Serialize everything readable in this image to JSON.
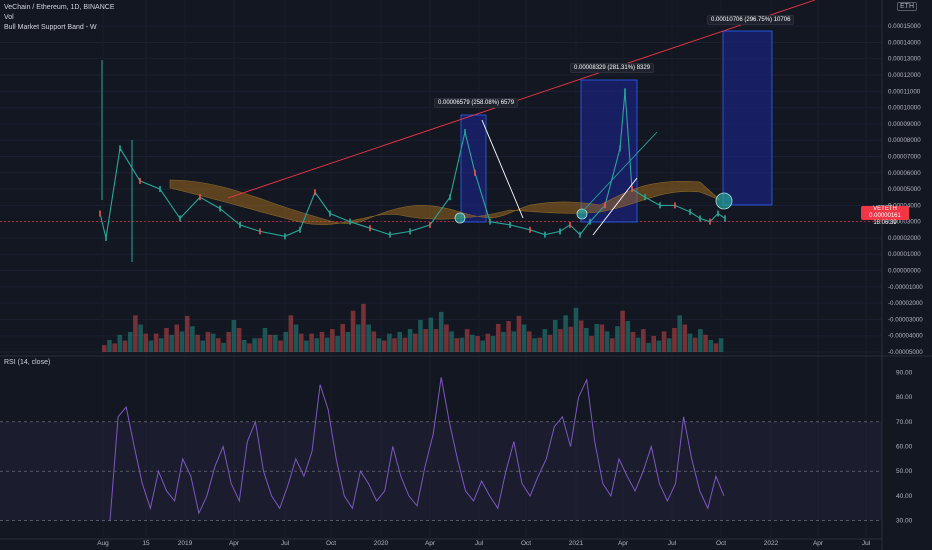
{
  "header": {
    "symbol_line": "VeChain / Ethereum, 1D, BINANCE",
    "vol_label": "Vol",
    "indicator_label": "Bull Market Support Band - W"
  },
  "rsi_label": "RSI (14, close)",
  "currency_badge": "ETH",
  "price_tag": {
    "symbol": "VETETH",
    "value": "0.00000161",
    "countdown": "18:06:39"
  },
  "annotations": [
    {
      "text": "0.00006579 (258.08%) 6579"
    },
    {
      "text": "0.00008329 (281.31%) 8329"
    },
    {
      "text": "0.00010706 (296.75%) 10706"
    }
  ],
  "colors": {
    "background": "#131722",
    "candle_up": "#26a69a",
    "candle_down": "#ef5350",
    "rsi_line": "#7e57c2",
    "trendline": "#f23645",
    "projection_fill": "#1a237e",
    "band_fill": "#b7781f"
  },
  "chart_data": [
    {
      "type": "line",
      "title": "VeChain / Ethereum, 1D, BINANCE",
      "x_ticks": [
        "Aug",
        "15",
        "2019",
        "Apr",
        "Jul",
        "Oct",
        "2020",
        "Apr",
        "Jul",
        "Oct",
        "2021",
        "Apr",
        "Jul",
        "Oct",
        "2022",
        "Apr",
        "Jul"
      ],
      "y_ticks": [
        "0.00015000",
        "0.00014000",
        "0.00013000",
        "0.00012000",
        "0.00011000",
        "0.00010000",
        "0.00009000",
        "0.00008000",
        "0.00007000",
        "0.00006000",
        "0.00005000",
        "0.00004000",
        "0.00003000",
        "0.00002000",
        "0.00001000",
        "0.00000000",
        "-0.00001000",
        "-0.00002000",
        "-0.00003000",
        "-0.00004000",
        "-0.00005000"
      ],
      "ylim": [
        -5e-05,
        0.000155
      ],
      "series": [
        {
          "name": "VETETH",
          "points": [
            [
              0,
              3.5e-05
            ],
            [
              6,
              2e-05
            ],
            [
              20,
              7.5e-05
            ],
            [
              40,
              5.5e-05
            ],
            [
              60,
              5e-05
            ],
            [
              80,
              3.2e-05
            ],
            [
              100,
              4.5e-05
            ],
            [
              120,
              3.8e-05
            ],
            [
              140,
              2.8e-05
            ],
            [
              160,
              2.4e-05
            ],
            [
              185,
              2.1e-05
            ],
            [
              200,
              2.5e-05
            ],
            [
              215,
              4.8e-05
            ],
            [
              230,
              3.5e-05
            ],
            [
              250,
              3e-05
            ],
            [
              270,
              2.6e-05
            ],
            [
              290,
              2.2e-05
            ],
            [
              310,
              2.4e-05
            ],
            [
              330,
              2.8e-05
            ],
            [
              350,
              4.5e-05
            ],
            [
              365,
              8.5e-05
            ],
            [
              375,
              6e-05
            ],
            [
              390,
              3e-05
            ],
            [
              410,
              2.8e-05
            ],
            [
              430,
              2.5e-05
            ],
            [
              445,
              2.2e-05
            ],
            [
              460,
              2.4e-05
            ],
            [
              470,
              2.8e-05
            ],
            [
              480,
              2.2e-05
            ],
            [
              490,
              3e-05
            ],
            [
              505,
              4e-05
            ],
            [
              520,
              7.5e-05
            ],
            [
              525,
              0.00011
            ],
            [
              532,
              5e-05
            ],
            [
              545,
              4.5e-05
            ],
            [
              560,
              4e-05
            ],
            [
              575,
              4e-05
            ],
            [
              590,
              3.6e-05
            ],
            [
              600,
              3.2e-05
            ],
            [
              610,
              3e-05
            ],
            [
              618,
              3.5e-05
            ],
            [
              625,
              3.2e-05
            ]
          ]
        }
      ]
    },
    {
      "type": "bar",
      "title": "Vol",
      "series": [
        {
          "name": "Vol",
          "values": [
            3,
            5,
            8,
            4,
            6,
            9,
            5,
            4,
            7,
            3,
            6,
            5,
            8,
            4,
            5,
            7,
            12,
            6,
            4,
            5,
            8,
            10,
            6,
            5,
            4,
            7,
            9,
            6,
            5,
            8,
            11,
            7,
            6,
            9,
            5,
            4,
            6,
            8,
            5,
            3
          ]
        }
      ]
    },
    {
      "type": "line",
      "title": "RSI (14, close)",
      "y_ticks": [
        "90.00",
        "80.00",
        "70.00",
        "60.00",
        "50.00",
        "40.00",
        "30.00"
      ],
      "ylim": [
        25,
        95
      ],
      "bands": [
        70,
        50,
        30
      ],
      "series": [
        {
          "name": "RSI",
          "values": [
            30,
            72,
            76,
            60,
            45,
            35,
            50,
            42,
            38,
            55,
            48,
            33,
            40,
            52,
            60,
            45,
            38,
            62,
            70,
            50,
            40,
            35,
            44,
            55,
            48,
            58,
            85,
            75,
            55,
            40,
            35,
            50,
            45,
            38,
            42,
            60,
            48,
            40,
            36,
            52,
            65,
            88,
            70,
            55,
            42,
            38,
            46,
            40,
            35,
            50,
            62,
            45,
            40,
            48,
            55,
            68,
            72,
            60,
            80,
            87,
            62,
            45,
            40,
            55,
            48,
            42,
            50,
            60,
            45,
            38,
            45,
            72,
            55,
            42,
            35,
            48,
            40
          ]
        }
      ]
    }
  ]
}
